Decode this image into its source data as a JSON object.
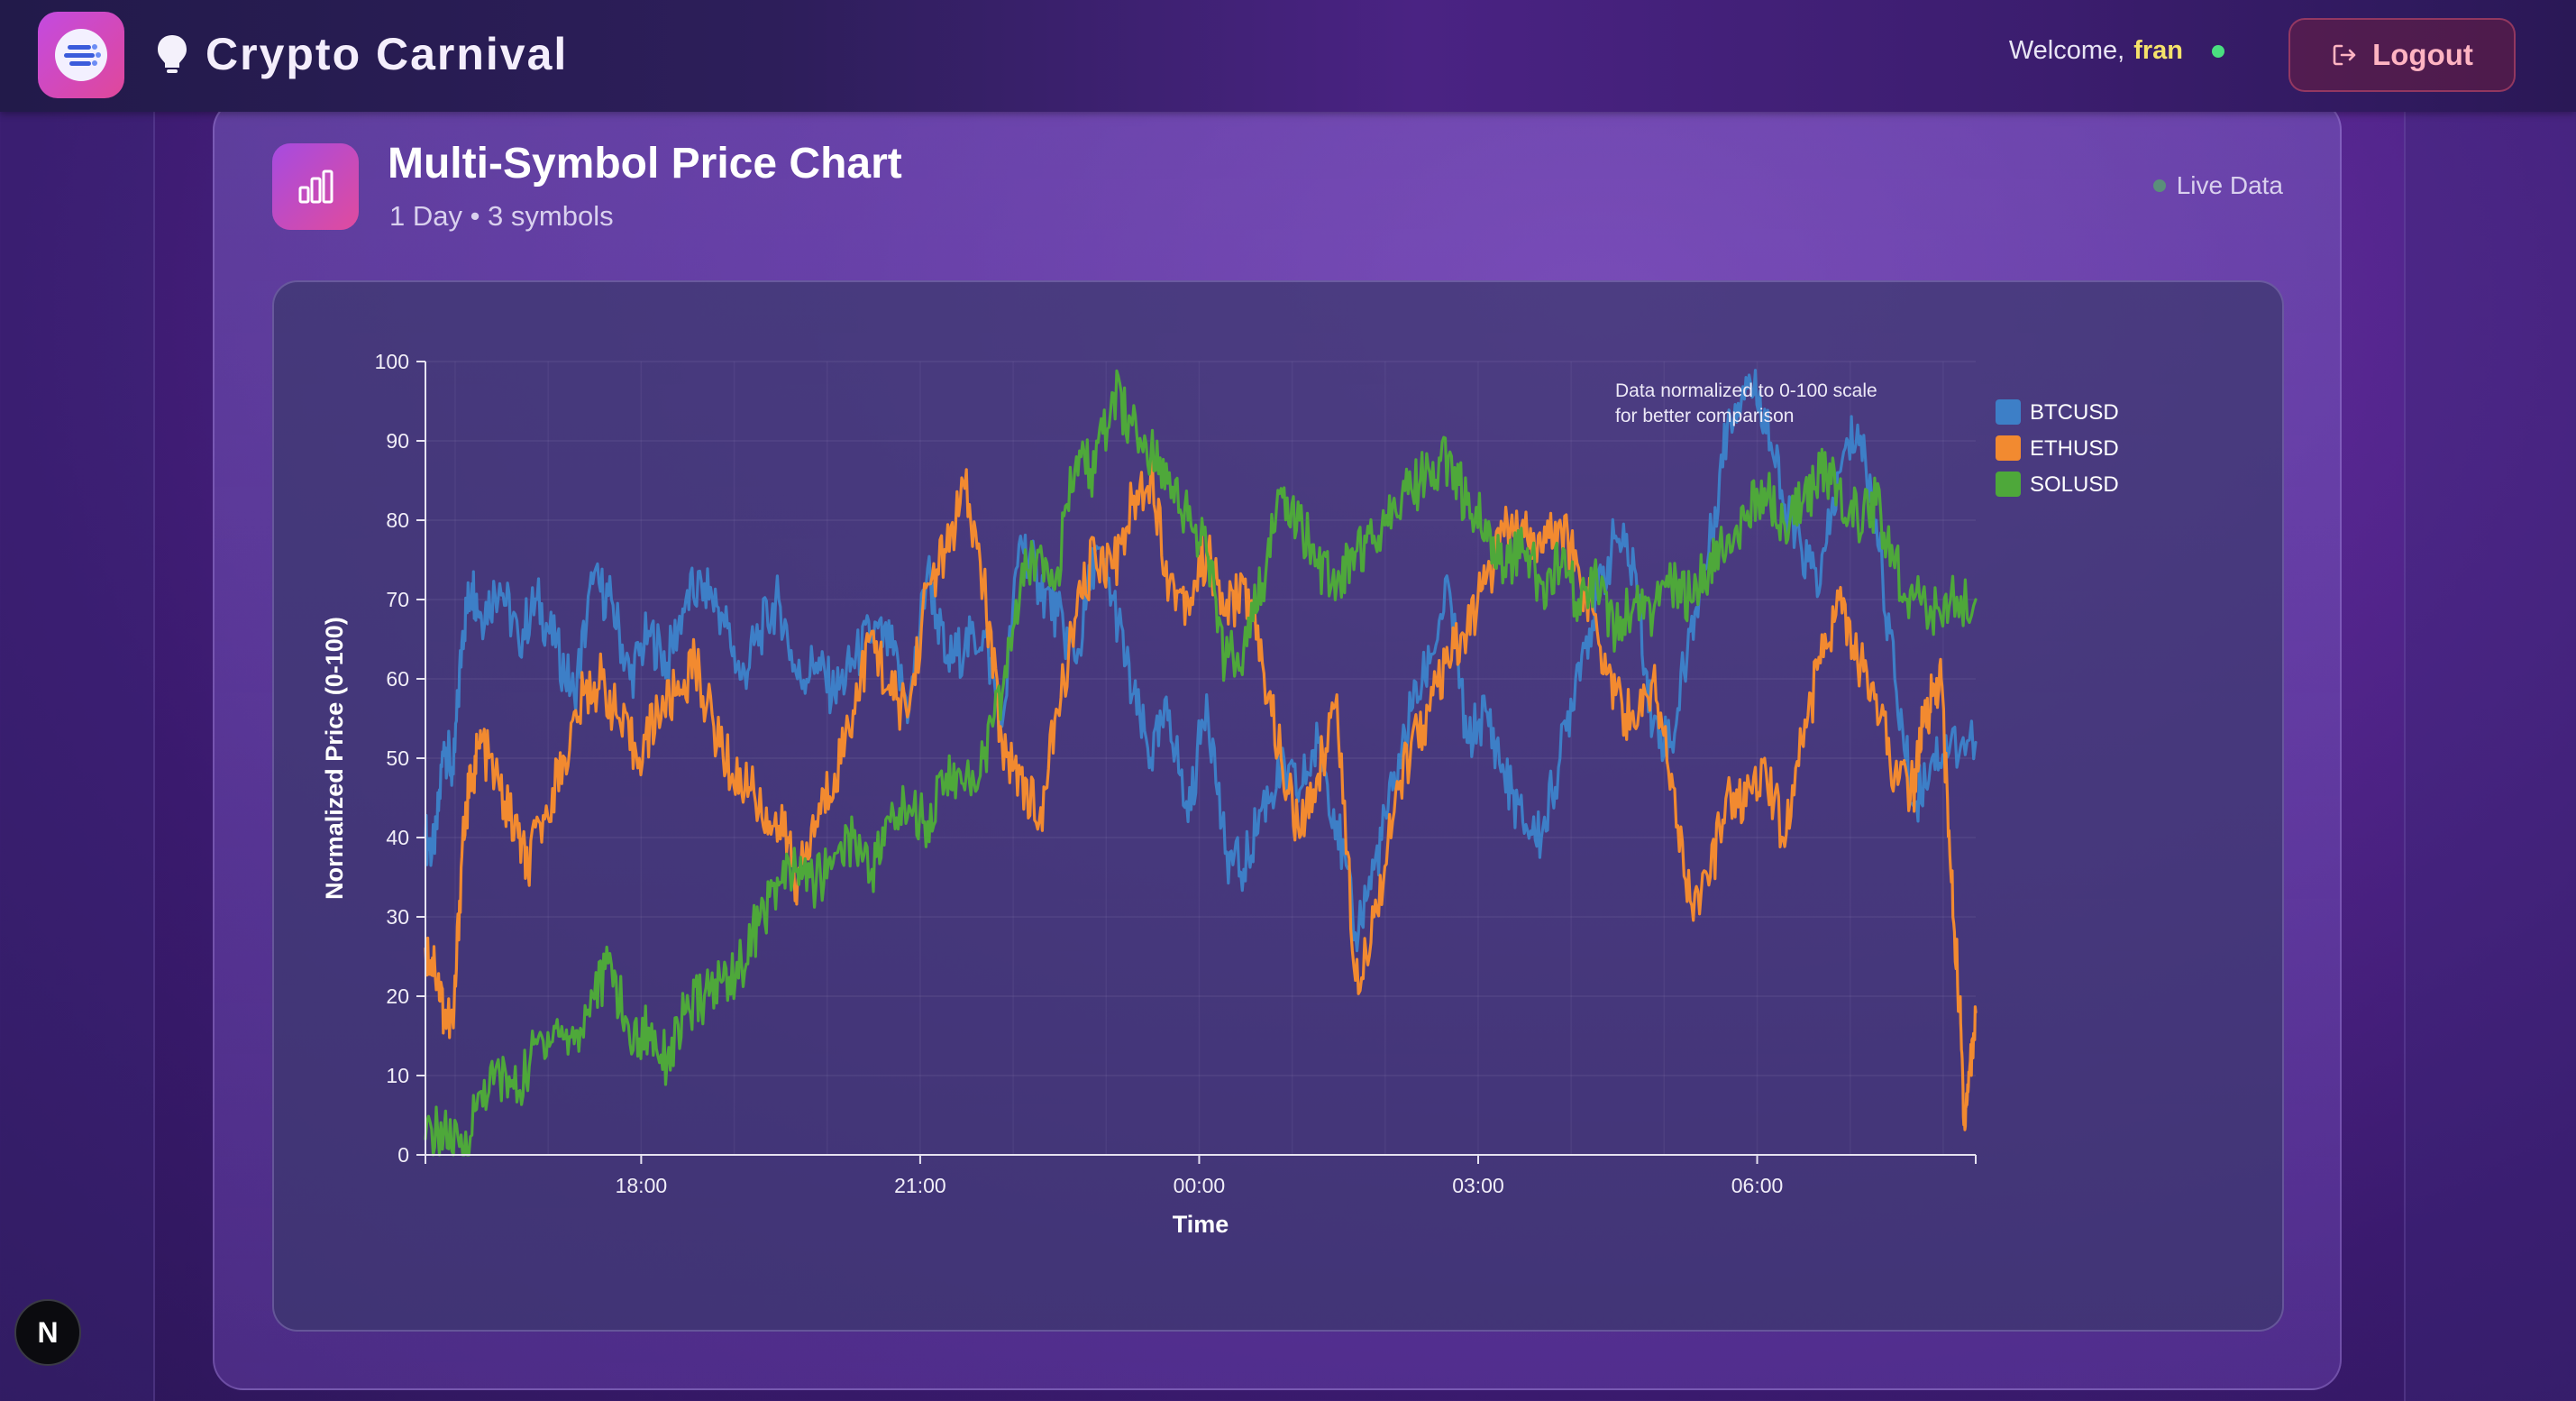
{
  "header": {
    "app_title": "Crypto Carnival",
    "welcome_text": "Welcome,",
    "username": "fran",
    "logout_label": "Logout"
  },
  "card": {
    "title": "Multi-Symbol Price Chart",
    "subtitle": "1 Day • 3 symbols",
    "live_label": "Live Data"
  },
  "icons": {
    "app_logo": "crypto-logo-icon",
    "title_bulb": "lightbulb-icon",
    "logout": "logout-icon",
    "chart": "bar-chart-icon",
    "next": "nextjs-icon"
  },
  "colors": {
    "btc": "#3d7fc7",
    "eth": "#f28a30",
    "sol": "#4ea83a",
    "accent_user": "#f5e26a",
    "online": "#4ade80"
  },
  "next_badge": "N",
  "chart_data": {
    "type": "line",
    "title": "",
    "xlabel": "Time",
    "ylabel": "Normalized Price (0-100)",
    "ylim": [
      0,
      100
    ],
    "yticks": [
      0,
      10,
      20,
      30,
      40,
      50,
      60,
      70,
      80,
      90,
      100
    ],
    "x_ticks": [
      "18:00",
      "21:00",
      "00:00",
      "03:00",
      "06:00"
    ],
    "x_tick_positions_hours": [
      2.32,
      5.32,
      8.32,
      11.32,
      14.32
    ],
    "x_range_hours": [
      0,
      16.67
    ],
    "x_unit": "hours since window start",
    "annotation": [
      "Data normalized to 0-100 scale",
      "for better comparison"
    ],
    "legend_position": "top-right",
    "grid": true,
    "series": [
      {
        "name": "BTCUSD",
        "color": "#3d7fc7",
        "points": [
          [
            0,
            40
          ],
          [
            0.1,
            38
          ],
          [
            0.2,
            52
          ],
          [
            0.3,
            48
          ],
          [
            0.4,
            66
          ],
          [
            0.5,
            72
          ],
          [
            0.6,
            68
          ],
          [
            0.8,
            72
          ],
          [
            1.0,
            65
          ],
          [
            1.2,
            70
          ],
          [
            1.4,
            64
          ],
          [
            1.6,
            58
          ],
          [
            1.8,
            72
          ],
          [
            2.0,
            70
          ],
          [
            2.2,
            60
          ],
          [
            2.4,
            66
          ],
          [
            2.6,
            62
          ],
          [
            2.8,
            70
          ],
          [
            3.0,
            72
          ],
          [
            3.2,
            68
          ],
          [
            3.4,
            60
          ],
          [
            3.6,
            66
          ],
          [
            3.8,
            70
          ],
          [
            4.0,
            60
          ],
          [
            4.2,
            62
          ],
          [
            4.4,
            58
          ],
          [
            4.6,
            62
          ],
          [
            4.8,
            66
          ],
          [
            5.0,
            64
          ],
          [
            5.2,
            56
          ],
          [
            5.4,
            74
          ],
          [
            5.6,
            62
          ],
          [
            5.8,
            64
          ],
          [
            6.0,
            66
          ],
          [
            6.2,
            54
          ],
          [
            6.4,
            78
          ],
          [
            6.6,
            72
          ],
          [
            6.8,
            68
          ],
          [
            7.0,
            62
          ],
          [
            7.2,
            76
          ],
          [
            7.4,
            70
          ],
          [
            7.6,
            58
          ],
          [
            7.8,
            50
          ],
          [
            8.0,
            56
          ],
          [
            8.2,
            42
          ],
          [
            8.4,
            58
          ],
          [
            8.6,
            38
          ],
          [
            8.8,
            36
          ],
          [
            9.0,
            44
          ],
          [
            9.2,
            48
          ],
          [
            9.4,
            46
          ],
          [
            9.6,
            52
          ],
          [
            9.8,
            42
          ],
          [
            10.0,
            28
          ],
          [
            10.2,
            36
          ],
          [
            10.4,
            46
          ],
          [
            10.6,
            56
          ],
          [
            10.8,
            62
          ],
          [
            11.0,
            72
          ],
          [
            11.2,
            52
          ],
          [
            11.4,
            56
          ],
          [
            11.6,
            48
          ],
          [
            11.8,
            42
          ],
          [
            12.0,
            40
          ],
          [
            12.2,
            50
          ],
          [
            12.4,
            62
          ],
          [
            12.6,
            70
          ],
          [
            12.8,
            78
          ],
          [
            13.0,
            74
          ],
          [
            13.2,
            54
          ],
          [
            13.4,
            52
          ],
          [
            13.6,
            66
          ],
          [
            13.8,
            76
          ],
          [
            14.0,
            92
          ],
          [
            14.2,
            98
          ],
          [
            14.4,
            94
          ],
          [
            14.6,
            82
          ],
          [
            14.8,
            76
          ],
          [
            15.0,
            72
          ],
          [
            15.2,
            86
          ],
          [
            15.4,
            92
          ],
          [
            15.6,
            80
          ],
          [
            15.8,
            60
          ],
          [
            16.0,
            44
          ],
          [
            16.2,
            50
          ],
          [
            16.4,
            52
          ],
          [
            16.67,
            52
          ]
        ]
      },
      {
        "name": "ETHUSD",
        "color": "#f28a30",
        "points": [
          [
            0,
            26
          ],
          [
            0.1,
            24
          ],
          [
            0.2,
            18
          ],
          [
            0.3,
            16
          ],
          [
            0.4,
            40
          ],
          [
            0.5,
            48
          ],
          [
            0.6,
            52
          ],
          [
            0.8,
            46
          ],
          [
            1.0,
            40
          ],
          [
            1.1,
            36
          ],
          [
            1.3,
            44
          ],
          [
            1.5,
            50
          ],
          [
            1.7,
            58
          ],
          [
            1.9,
            60
          ],
          [
            2.1,
            54
          ],
          [
            2.3,
            50
          ],
          [
            2.5,
            56
          ],
          [
            2.7,
            58
          ],
          [
            2.9,
            62
          ],
          [
            3.1,
            54
          ],
          [
            3.3,
            48
          ],
          [
            3.5,
            46
          ],
          [
            3.7,
            42
          ],
          [
            3.9,
            40
          ],
          [
            4.0,
            34
          ],
          [
            4.2,
            42
          ],
          [
            4.4,
            48
          ],
          [
            4.6,
            56
          ],
          [
            4.8,
            66
          ],
          [
            5.0,
            58
          ],
          [
            5.2,
            56
          ],
          [
            5.4,
            72
          ],
          [
            5.6,
            76
          ],
          [
            5.8,
            84
          ],
          [
            6.0,
            72
          ],
          [
            6.2,
            52
          ],
          [
            6.4,
            48
          ],
          [
            6.6,
            42
          ],
          [
            6.8,
            56
          ],
          [
            7.0,
            68
          ],
          [
            7.2,
            76
          ],
          [
            7.4,
            74
          ],
          [
            7.6,
            82
          ],
          [
            7.8,
            86
          ],
          [
            8.0,
            72
          ],
          [
            8.2,
            70
          ],
          [
            8.4,
            76
          ],
          [
            8.6,
            68
          ],
          [
            8.8,
            72
          ],
          [
            9.0,
            62
          ],
          [
            9.2,
            50
          ],
          [
            9.4,
            40
          ],
          [
            9.6,
            48
          ],
          [
            9.8,
            58
          ],
          [
            10.0,
            22
          ],
          [
            10.2,
            30
          ],
          [
            10.4,
            42
          ],
          [
            10.6,
            52
          ],
          [
            10.8,
            56
          ],
          [
            11.0,
            62
          ],
          [
            11.2,
            66
          ],
          [
            11.4,
            72
          ],
          [
            11.6,
            78
          ],
          [
            11.8,
            80
          ],
          [
            12.0,
            76
          ],
          [
            12.2,
            80
          ],
          [
            12.4,
            74
          ],
          [
            12.6,
            66
          ],
          [
            12.8,
            58
          ],
          [
            13.0,
            54
          ],
          [
            13.2,
            60
          ],
          [
            13.4,
            48
          ],
          [
            13.6,
            32
          ],
          [
            13.8,
            34
          ],
          [
            14.0,
            46
          ],
          [
            14.2,
            44
          ],
          [
            14.4,
            50
          ],
          [
            14.6,
            40
          ],
          [
            14.8,
            52
          ],
          [
            15.0,
            62
          ],
          [
            15.2,
            70
          ],
          [
            15.4,
            62
          ],
          [
            15.6,
            58
          ],
          [
            15.8,
            48
          ],
          [
            16.0,
            46
          ],
          [
            16.1,
            54
          ],
          [
            16.2,
            58
          ],
          [
            16.3,
            60
          ],
          [
            16.4,
            36
          ],
          [
            16.5,
            18
          ],
          [
            16.55,
            4
          ],
          [
            16.6,
            10
          ],
          [
            16.67,
            18
          ]
        ]
      },
      {
        "name": "SOLUSD",
        "color": "#4ea83a",
        "points": [
          [
            0,
            2
          ],
          [
            0.2,
            3
          ],
          [
            0.4,
            0
          ],
          [
            0.6,
            8
          ],
          [
            0.8,
            10
          ],
          [
            1.0,
            8
          ],
          [
            1.2,
            14
          ],
          [
            1.4,
            16
          ],
          [
            1.6,
            14
          ],
          [
            1.8,
            20
          ],
          [
            2.0,
            24
          ],
          [
            2.2,
            14
          ],
          [
            2.4,
            16
          ],
          [
            2.6,
            12
          ],
          [
            2.8,
            18
          ],
          [
            3.0,
            20
          ],
          [
            3.2,
            22
          ],
          [
            3.4,
            24
          ],
          [
            3.6,
            30
          ],
          [
            3.8,
            34
          ],
          [
            4.0,
            36
          ],
          [
            4.2,
            34
          ],
          [
            4.4,
            38
          ],
          [
            4.6,
            40
          ],
          [
            4.8,
            36
          ],
          [
            5.0,
            42
          ],
          [
            5.2,
            44
          ],
          [
            5.4,
            42
          ],
          [
            5.6,
            48
          ],
          [
            5.8,
            46
          ],
          [
            6.0,
            50
          ],
          [
            6.2,
            58
          ],
          [
            6.4,
            72
          ],
          [
            6.6,
            76
          ],
          [
            6.8,
            74
          ],
          [
            7.0,
            88
          ],
          [
            7.2,
            86
          ],
          [
            7.4,
            96
          ],
          [
            7.6,
            92
          ],
          [
            7.8,
            88
          ],
          [
            8.0,
            86
          ],
          [
            8.2,
            80
          ],
          [
            8.4,
            76
          ],
          [
            8.6,
            62
          ],
          [
            8.8,
            64
          ],
          [
            9.0,
            72
          ],
          [
            9.2,
            84
          ],
          [
            9.4,
            80
          ],
          [
            9.6,
            74
          ],
          [
            9.8,
            72
          ],
          [
            10.0,
            76
          ],
          [
            10.2,
            78
          ],
          [
            10.4,
            82
          ],
          [
            10.6,
            84
          ],
          [
            10.8,
            86
          ],
          [
            11.0,
            88
          ],
          [
            11.2,
            82
          ],
          [
            11.4,
            80
          ],
          [
            11.6,
            74
          ],
          [
            11.8,
            76
          ],
          [
            12.0,
            72
          ],
          [
            12.2,
            74
          ],
          [
            12.4,
            70
          ],
          [
            12.6,
            72
          ],
          [
            12.8,
            66
          ],
          [
            13.0,
            70
          ],
          [
            13.2,
            68
          ],
          [
            13.4,
            72
          ],
          [
            13.6,
            70
          ],
          [
            13.8,
            74
          ],
          [
            14.0,
            78
          ],
          [
            14.2,
            80
          ],
          [
            14.4,
            84
          ],
          [
            14.6,
            80
          ],
          [
            14.8,
            82
          ],
          [
            15.0,
            86
          ],
          [
            15.2,
            84
          ],
          [
            15.4,
            80
          ],
          [
            15.6,
            82
          ],
          [
            15.8,
            74
          ],
          [
            16.0,
            70
          ],
          [
            16.2,
            68
          ],
          [
            16.4,
            70
          ],
          [
            16.67,
            70
          ]
        ]
      }
    ]
  }
}
